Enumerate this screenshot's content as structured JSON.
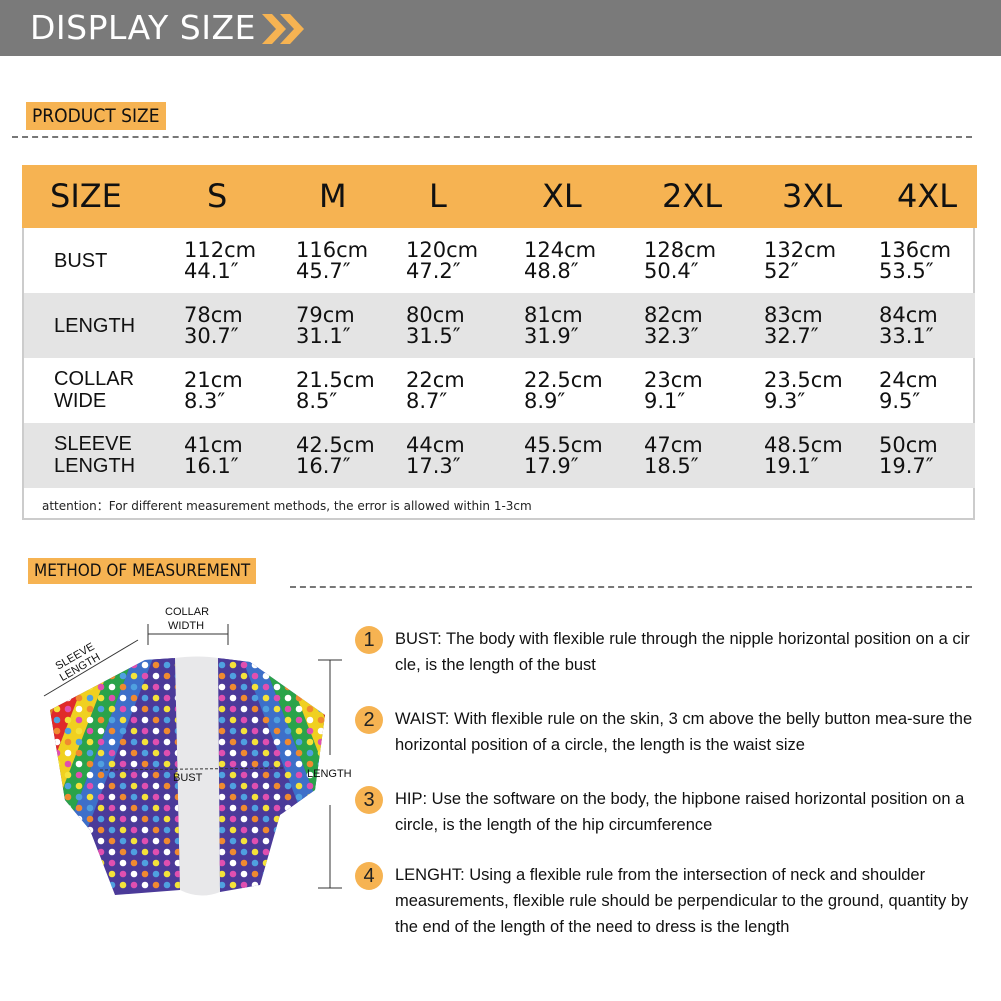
{
  "header": {
    "title": "DISPLAY SIZE",
    "accent": "#f6b352"
  },
  "product_size": {
    "label": "PRODUCT SIZE"
  },
  "table": {
    "headers": [
      "SIZE",
      "S",
      "M",
      "L",
      "XL",
      "2XL",
      "3XL",
      "4XL"
    ],
    "rows": [
      {
        "label": [
          "BUST"
        ],
        "values": [
          [
            "112cm",
            "44.1″"
          ],
          [
            "116cm",
            "45.7″"
          ],
          [
            "120cm",
            "47.2″"
          ],
          [
            "124cm",
            "48.8″"
          ],
          [
            "128cm",
            "50.4″"
          ],
          [
            "132cm",
            "52″"
          ],
          [
            "136cm",
            "53.5″"
          ]
        ]
      },
      {
        "label": [
          "LENGTH"
        ],
        "values": [
          [
            "78cm",
            "30.7″"
          ],
          [
            "79cm",
            "31.1″"
          ],
          [
            "80cm",
            "31.5″"
          ],
          [
            "81cm",
            "31.9″"
          ],
          [
            "82cm",
            "32.3″"
          ],
          [
            "83cm",
            "32.7″"
          ],
          [
            "84cm",
            "33.1″"
          ]
        ]
      },
      {
        "label": [
          "COLLAR",
          "WIDE"
        ],
        "values": [
          [
            "21cm",
            "8.3″"
          ],
          [
            "21.5cm",
            "8.5″"
          ],
          [
            "22cm",
            "8.7″"
          ],
          [
            "22.5cm",
            "8.9″"
          ],
          [
            "23cm",
            "9.1″"
          ],
          [
            "23.5cm",
            "9.3″"
          ],
          [
            "24cm",
            "9.5″"
          ]
        ]
      },
      {
        "label": [
          "SLEEVE",
          "LENGTH"
        ],
        "values": [
          [
            "41cm",
            "16.1″"
          ],
          [
            "42.5cm",
            "16.7″"
          ],
          [
            "44cm",
            "17.3″"
          ],
          [
            "45.5cm",
            "17.9″"
          ],
          [
            "47cm",
            "18.5″"
          ],
          [
            "48.5cm",
            "19.1″"
          ],
          [
            "50cm",
            "19.7″"
          ]
        ]
      }
    ],
    "attention": "attention：For different measurement methods, the error is allowed within 1-3cm"
  },
  "method": {
    "label": "METHOD OF MEASUREMENT",
    "diagram": {
      "collar": [
        "COLLAR",
        "WIDTH"
      ],
      "sleeve": [
        "SLEEVE",
        "LENGTH"
      ],
      "bust": "BUST",
      "length": "LENGTH"
    },
    "items": [
      {
        "n": "1",
        "text": "BUST: The body with flexible rule through the nipple horizontal position on a cir   cle, is the length of the bust"
      },
      {
        "n": "2",
        "text": "WAIST: With flexible rule on the skin, 3 cm above the belly button mea-sure the horizontal position of a circle, the length is the waist size"
      },
      {
        "n": "3",
        "text": "HIP: Use the software on the body, the hipbone raised horizontal position on a circle, is the length of the hip circumference"
      },
      {
        "n": "4",
        "text": "LENGHT: Using a flexible rule from the intersection of neck and shoulder measurements, flexible rule should be perpendicular to the ground, quantity by the end of the length of the need to dress is the length"
      }
    ]
  }
}
